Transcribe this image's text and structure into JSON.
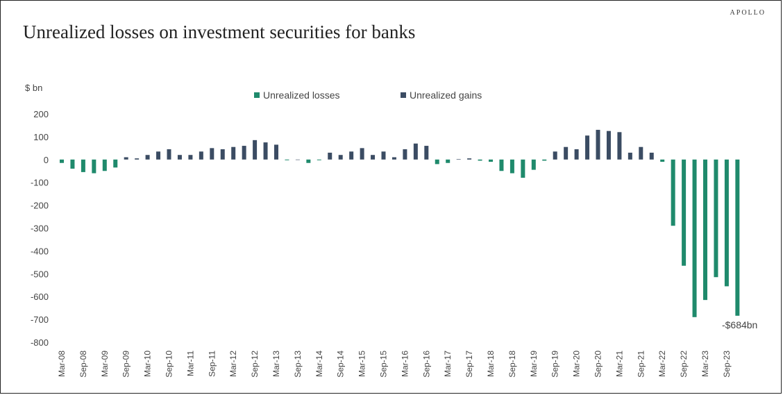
{
  "logo": "APOLLO",
  "title": "Unrealized losses on investment securities for banks",
  "chart_data": {
    "type": "bar",
    "ylabel": "$ bn",
    "ylim": [
      -800,
      200
    ],
    "yticks": [
      200,
      100,
      0,
      -100,
      -200,
      -300,
      -400,
      -500,
      -600,
      -700,
      -800
    ],
    "xtick_labels": [
      "Mar-08",
      "Sep-08",
      "Mar-09",
      "Sep-09",
      "Mar-10",
      "Sep-10",
      "Mar-11",
      "Sep-11",
      "Mar-12",
      "Sep-12",
      "Mar-13",
      "Sep-13",
      "Mar-14",
      "Sep-14",
      "Mar-15",
      "Sep-15",
      "Mar-16",
      "Sep-16",
      "Mar-17",
      "Sep-17",
      "Mar-18",
      "Sep-18",
      "Mar-19",
      "Sep-19",
      "Mar-20",
      "Sep-20",
      "Mar-21",
      "Sep-21",
      "Mar-22",
      "Sep-22",
      "Mar-23",
      "Sep-23"
    ],
    "series_colors": {
      "losses": "#1f8a6c",
      "gains": "#3b4c63"
    },
    "legend": [
      {
        "name": "Unrealized losses",
        "color": "#1f8a6c"
      },
      {
        "name": "Unrealized gains",
        "color": "#3b4c63"
      }
    ],
    "legend_position": "top-center",
    "annotation": "-$684bn",
    "values": [
      -15,
      -40,
      -55,
      -60,
      -50,
      -35,
      10,
      5,
      20,
      35,
      45,
      20,
      20,
      35,
      50,
      45,
      55,
      60,
      85,
      75,
      65,
      -3,
      0,
      -15,
      -3,
      30,
      20,
      35,
      50,
      20,
      35,
      10,
      45,
      70,
      60,
      -20,
      -15,
      2,
      5,
      -5,
      -10,
      -50,
      -60,
      -80,
      -45,
      -5,
      35,
      55,
      45,
      105,
      130,
      125,
      120,
      30,
      55,
      30,
      -10,
      -290,
      -465,
      -690,
      -615,
      -515,
      -555,
      -684
    ]
  }
}
